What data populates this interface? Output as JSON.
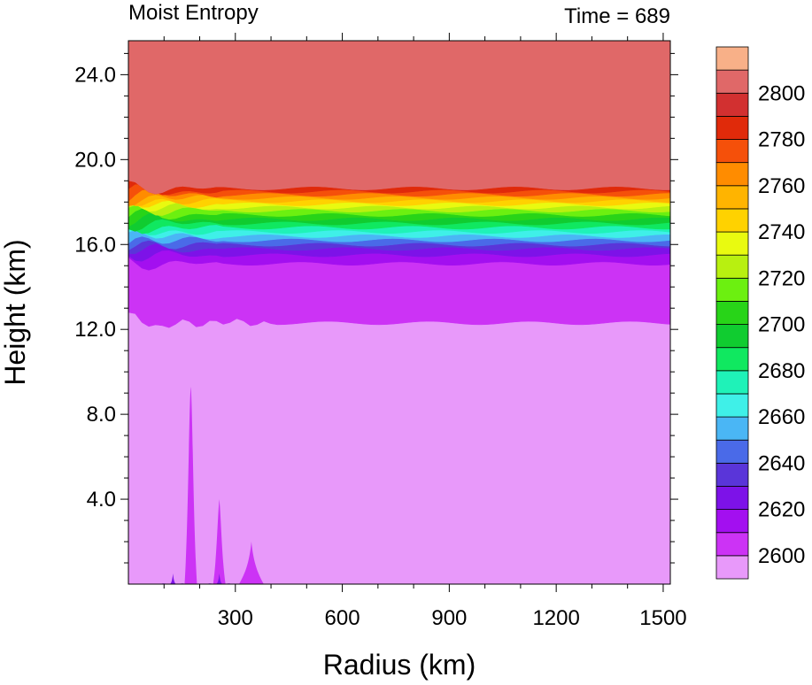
{
  "chart_data": {
    "type": "heatmap",
    "title": "Moist Entropy",
    "subtitle": "Time = 689",
    "xlabel": "Radius (km)",
    "ylabel": "Height (km)",
    "xlim": [
      0,
      1520
    ],
    "ylim": [
      0,
      25.6
    ],
    "x_ticks": [
      "300",
      "600",
      "900",
      "1200",
      "1500"
    ],
    "x_tick_values": [
      300,
      600,
      900,
      1200,
      1500
    ],
    "y_ticks": [
      "4.0",
      "8.0",
      "12.0",
      "16.0",
      "20.0",
      "24.0"
    ],
    "y_tick_values": [
      4,
      8,
      12,
      16,
      20,
      24
    ],
    "grid": false,
    "colorbar": {
      "placement": "right",
      "labels": [
        "2600",
        "2620",
        "2640",
        "2660",
        "2680",
        "2700",
        "2720",
        "2740",
        "2760",
        "2780",
        "2800"
      ],
      "label_values": [
        2600,
        2620,
        2640,
        2660,
        2680,
        2700,
        2720,
        2740,
        2760,
        2780,
        2800
      ],
      "levels": [
        2590,
        2600,
        2610,
        2620,
        2630,
        2640,
        2650,
        2660,
        2670,
        2680,
        2690,
        2700,
        2710,
        2720,
        2730,
        2740,
        2750,
        2760,
        2770,
        2780,
        2790,
        2800,
        2810
      ],
      "colors": [
        "#e899fa",
        "#cc33f5",
        "#a30ff0",
        "#7d12e8",
        "#5a35d9",
        "#4a6ae8",
        "#4ab6f5",
        "#3ff0e8",
        "#1ff2b8",
        "#10e860",
        "#10cc30",
        "#28d418",
        "#6cf010",
        "#b8f010",
        "#e9fa10",
        "#ffd200",
        "#ffb400",
        "#ff8c00",
        "#f5500a",
        "#e02a0a",
        "#d23030",
        "#e06868",
        "#f8b088"
      ]
    },
    "layers": [
      {
        "value": 2595,
        "z_bottom": 0.0,
        "z_top": 12.3
      },
      {
        "value": 2600,
        "z_bottom": 12.3,
        "z_top": 15.1
      },
      {
        "value": 2610,
        "z_bottom": 15.1,
        "z_top": 15.5
      },
      {
        "value": 2620,
        "z_bottom": 15.5,
        "z_top": 15.8
      },
      {
        "value": 2630,
        "z_bottom": 15.8,
        "z_top": 16.0
      },
      {
        "value": 2640,
        "z_bottom": 16.0,
        "z_top": 16.2
      },
      {
        "value": 2650,
        "z_bottom": 16.2,
        "z_top": 16.4
      },
      {
        "value": 2660,
        "z_bottom": 16.4,
        "z_top": 16.6
      },
      {
        "value": 2670,
        "z_bottom": 16.6,
        "z_top": 16.8
      },
      {
        "value": 2680,
        "z_bottom": 16.8,
        "z_top": 17.0
      },
      {
        "value": 2690,
        "z_bottom": 17.0,
        "z_top": 17.2
      },
      {
        "value": 2700,
        "z_bottom": 17.2,
        "z_top": 17.4
      },
      {
        "value": 2710,
        "z_bottom": 17.4,
        "z_top": 17.6
      },
      {
        "value": 2720,
        "z_bottom": 17.6,
        "z_top": 17.75
      },
      {
        "value": 2730,
        "z_bottom": 17.75,
        "z_top": 17.9
      },
      {
        "value": 2740,
        "z_bottom": 17.9,
        "z_top": 18.05
      },
      {
        "value": 2750,
        "z_bottom": 18.05,
        "z_top": 18.2
      },
      {
        "value": 2760,
        "z_bottom": 18.2,
        "z_top": 18.35
      },
      {
        "value": 2770,
        "z_bottom": 18.35,
        "z_top": 18.5
      },
      {
        "value": 2780,
        "z_bottom": 18.5,
        "z_top": 18.65
      },
      {
        "value": 2805,
        "z_bottom": 18.65,
        "z_top": 25.6
      }
    ],
    "low_level_features": [
      {
        "value": 2600,
        "x_center": 175,
        "z_top": 9.3
      },
      {
        "value": 2600,
        "x_center": 255,
        "z_top": 4.0
      },
      {
        "value": 2600,
        "x_center": 345,
        "z_top": 2.0
      },
      {
        "value": 2620,
        "x_center": 125,
        "z_top": 0.5
      },
      {
        "value": 2620,
        "x_center": 255,
        "z_top": 0.5
      }
    ]
  }
}
